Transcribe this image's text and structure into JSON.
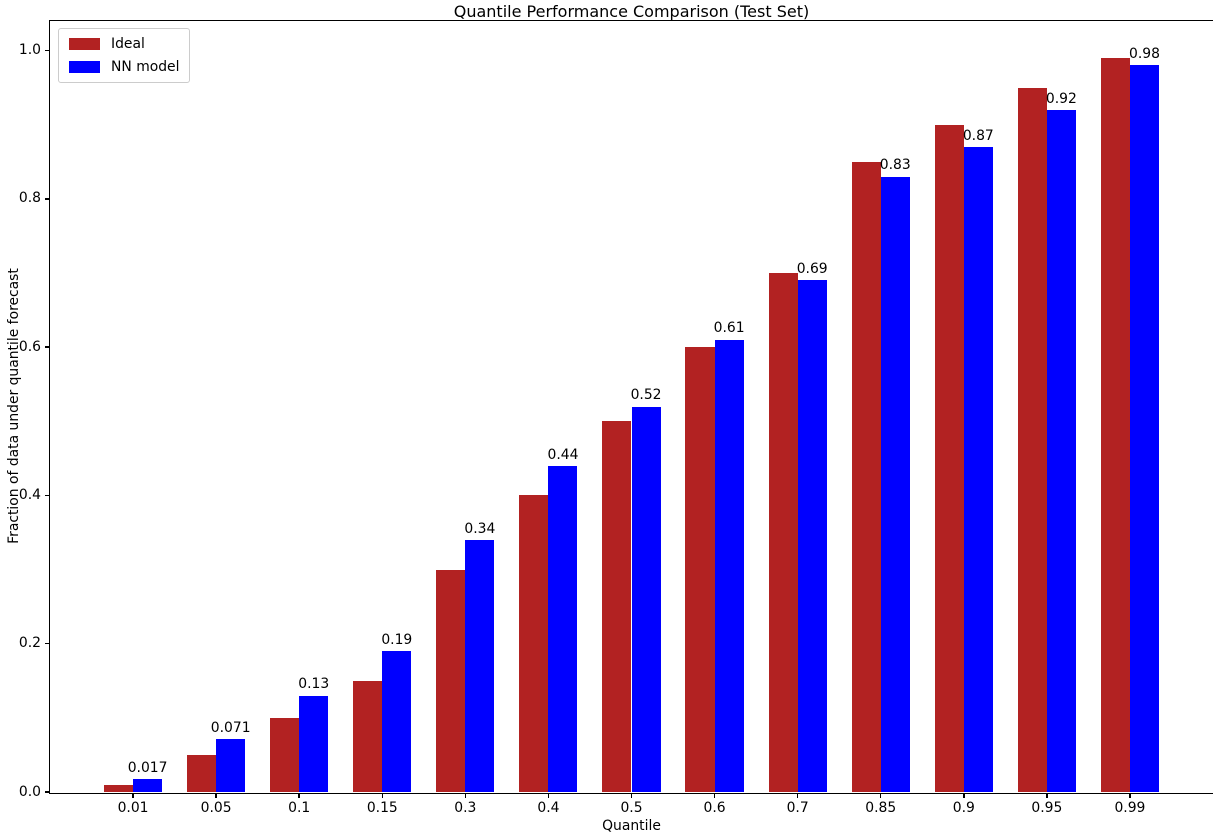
{
  "chart_data": {
    "type": "bar",
    "title": "Quantile Performance Comparison (Test Set)",
    "xlabel": "Quantile",
    "ylabel": "Fraction of data under quantile forecast",
    "categories": [
      "0.01",
      "0.05",
      "0.1",
      "0.15",
      "0.3",
      "0.4",
      "0.5",
      "0.6",
      "0.7",
      "0.85",
      "0.9",
      "0.95",
      "0.99"
    ],
    "series": [
      {
        "name": "Ideal",
        "color": "#B22222",
        "values": [
          0.01,
          0.05,
          0.1,
          0.15,
          0.3,
          0.4,
          0.5,
          0.6,
          0.7,
          0.85,
          0.9,
          0.95,
          0.99
        ]
      },
      {
        "name": "NN model",
        "color": "#0000FF",
        "values": [
          0.017,
          0.071,
          0.13,
          0.19,
          0.34,
          0.44,
          0.52,
          0.61,
          0.69,
          0.83,
          0.87,
          0.92,
          0.98
        ]
      }
    ],
    "bar_labels": [
      "0.017",
      "0.071",
      "0.13",
      "0.19",
      "0.34",
      "0.44",
      "0.52",
      "0.61",
      "0.69",
      "0.83",
      "0.87",
      "0.92",
      "0.98"
    ],
    "bar_labels_on_series": "NN model",
    "yticks": [
      "0.0",
      "0.2",
      "0.4",
      "0.6",
      "0.8",
      "1.0"
    ],
    "ylim": [
      0,
      1.04
    ],
    "xlim_units": [
      -1,
      13
    ],
    "bar_width_units": 0.35,
    "grid": false,
    "legend": {
      "position": "upper-left",
      "entries": [
        "Ideal",
        "NN model"
      ]
    },
    "colors": {
      "ideal": "#B22222",
      "nn_model": "#0000FF",
      "spine": "#000000",
      "background": "#FFFFFF"
    }
  }
}
